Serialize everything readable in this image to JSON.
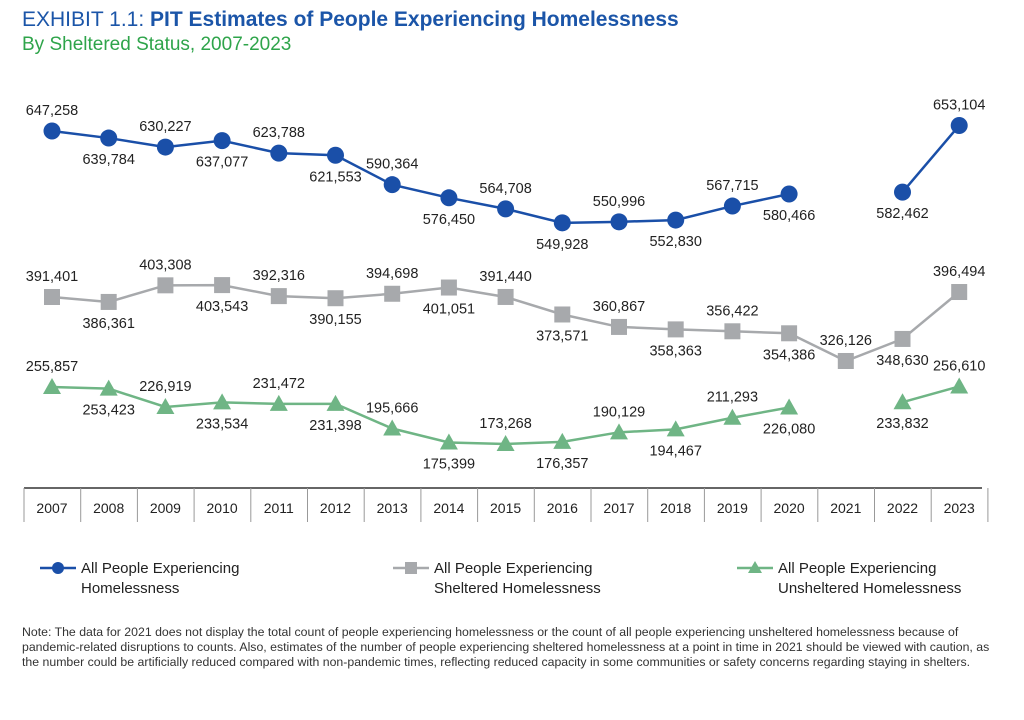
{
  "header": {
    "exhibit_label": "EXHIBIT 1.1:",
    "title": "PIT Estimates of People Experiencing Homelessness",
    "subtitle": "By Sheltered Status, 2007-2023"
  },
  "note": "Note: The data for 2021 does not display the total count of people experiencing homelessness or the count of all people experiencing unsheltered homelessness because of pandemic-related disruptions to counts. Also, estimates of the number of people experiencing sheltered homelessness at a point in time in 2021 should be viewed with caution, as the number could be artificially reduced compared with non-pandemic times, reflecting reduced capacity in some communities or safety concerns regarding staying in shelters.",
  "chart_data": {
    "type": "line",
    "categories": [
      "2007",
      "2008",
      "2009",
      "2010",
      "2011",
      "2012",
      "2013",
      "2014",
      "2015",
      "2016",
      "2017",
      "2018",
      "2019",
      "2020",
      "2021",
      "2022",
      "2023"
    ],
    "series": [
      {
        "name": "All People Experiencing Homelessness",
        "legend_lines": [
          "All People Experiencing",
          "Homelessness"
        ],
        "color": "#1a4fa8",
        "marker": "circle",
        "values": [
          647258,
          639784,
          630227,
          637077,
          623788,
          621553,
          590364,
          576450,
          564708,
          549928,
          550996,
          552830,
          567715,
          580466,
          null,
          582462,
          653104
        ],
        "labels": [
          "647,258",
          "639,784",
          "630,227",
          "637,077",
          "623,788",
          "621,553",
          "590,364",
          "576,450",
          "564,708",
          "549,928",
          "550,996",
          "552,830",
          "567,715",
          "580,466",
          "",
          "582,462",
          "653,104"
        ]
      },
      {
        "name": "All People Experiencing Sheltered Homelessness",
        "legend_lines": [
          "All People Experiencing",
          "Sheltered Homelessness"
        ],
        "color": "#a7a9ac",
        "marker": "square",
        "values": [
          391401,
          386361,
          403308,
          403543,
          392316,
          390155,
          394698,
          401051,
          391440,
          373571,
          360867,
          358363,
          356422,
          354386,
          326126,
          348630,
          396494
        ],
        "labels": [
          "391,401",
          "386,361",
          "403,308",
          "403,543",
          "392,316",
          "390,155",
          "394,698",
          "401,051",
          "391,440",
          "373,571",
          "360,867",
          "358,363",
          "356,422",
          "354,386",
          "326,126",
          "348,630",
          "396,494"
        ]
      },
      {
        "name": "All People Experiencing Unsheltered Homelessness",
        "legend_lines": [
          "All People Experiencing",
          "Unsheltered Homelessness"
        ],
        "color": "#6fb585",
        "marker": "triangle",
        "values": [
          255857,
          253423,
          226919,
          233534,
          231472,
          231398,
          195666,
          175399,
          173268,
          176357,
          190129,
          194467,
          211293,
          226080,
          null,
          233832,
          256610
        ],
        "labels": [
          "255,857",
          "253,423",
          "226,919",
          "233,534",
          "231,472",
          "231,398",
          "195,666",
          "175,399",
          "173,268",
          "176,357",
          "190,129",
          "194,467",
          "211,293",
          "226,080",
          "",
          "233,832",
          "256,610"
        ]
      }
    ],
    "legend_position": "bottom",
    "grid": false
  }
}
